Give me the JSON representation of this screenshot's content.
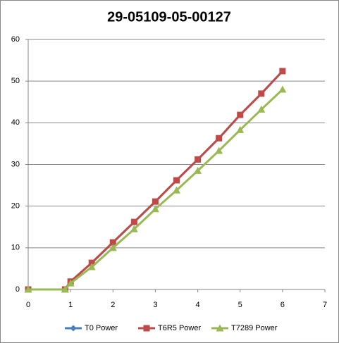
{
  "chart_data": {
    "type": "line",
    "title": "29-05109-05-00127",
    "x": [
      0,
      0.87,
      1,
      1.5,
      2,
      2.5,
      3,
      3.5,
      4,
      4.5,
      5,
      5.5,
      6
    ],
    "series": [
      {
        "name": "T0 Power",
        "color": "#4a7ebb",
        "marker": "diamond",
        "values": [
          0,
          0,
          1.9,
          6.4,
          11.3,
          16.2,
          21.1,
          26.2,
          31.2,
          36.3,
          41.9,
          47,
          52.4
        ]
      },
      {
        "name": "T6R5 Power",
        "color": "#be4b48",
        "marker": "square",
        "values": [
          0,
          0,
          1.9,
          6.4,
          11.3,
          16.2,
          21.1,
          26.2,
          31.2,
          36.3,
          41.9,
          47,
          52.4
        ]
      },
      {
        "name": "T7289 Power",
        "color": "#98b954",
        "marker": "triangle",
        "values": [
          0,
          0,
          1.5,
          5.4,
          10,
          14.5,
          19.3,
          23.8,
          28.5,
          33.3,
          38.3,
          43.2,
          48
        ]
      }
    ],
    "xlim": [
      0,
      7
    ],
    "xticks": [
      0,
      1,
      2,
      3,
      4,
      5,
      6,
      7
    ],
    "ylim": [
      0,
      60
    ],
    "yticks": [
      0,
      10,
      20,
      30,
      40,
      50,
      60
    ],
    "grid": true,
    "legend": "bottom"
  }
}
